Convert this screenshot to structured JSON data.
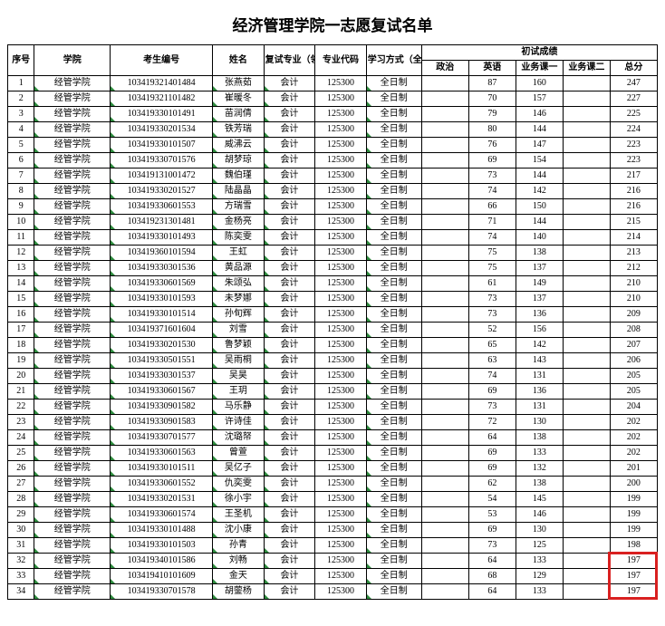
{
  "title": "经济管理学院一志愿复试名单",
  "headers": {
    "seq": "序号",
    "college": "学院",
    "cand_id": "考生编号",
    "name": "姓名",
    "major_field": "复试专业（领域）",
    "major_code": "专业代码",
    "study_mode": "学习方式（全/非全）",
    "score_group": "初试成绩",
    "s1": "政治",
    "s2": "英语",
    "s3": "业务课一",
    "s4": "业务课二",
    "s5": "总分"
  },
  "common": {
    "college": "经管学院",
    "major_field": "会计",
    "major_code": "125300",
    "study_mode": "全日制"
  },
  "rows": [
    {
      "seq": 1,
      "id": "103419321401484",
      "name": "张燕茹",
      "s1": "",
      "s2": "87",
      "s3": "160",
      "s4": "",
      "s5": "247"
    },
    {
      "seq": 2,
      "id": "103419321101482",
      "name": "崔暖冬",
      "s1": "",
      "s2": "70",
      "s3": "157",
      "s4": "",
      "s5": "227"
    },
    {
      "seq": 3,
      "id": "103419330101491",
      "name": "苗润倩",
      "s1": "",
      "s2": "79",
      "s3": "146",
      "s4": "",
      "s5": "225"
    },
    {
      "seq": 4,
      "id": "103419330201534",
      "name": "铁芳瑞",
      "s1": "",
      "s2": "80",
      "s3": "144",
      "s4": "",
      "s5": "224"
    },
    {
      "seq": 5,
      "id": "103419330101507",
      "name": "威沸云",
      "s1": "",
      "s2": "76",
      "s3": "147",
      "s4": "",
      "s5": "223"
    },
    {
      "seq": 6,
      "id": "103419330701576",
      "name": "胡梦琼",
      "s1": "",
      "s2": "69",
      "s3": "154",
      "s4": "",
      "s5": "223"
    },
    {
      "seq": 7,
      "id": "103419131001472",
      "name": "魏伯瑾",
      "s1": "",
      "s2": "73",
      "s3": "144",
      "s4": "",
      "s5": "217"
    },
    {
      "seq": 8,
      "id": "103419330201527",
      "name": "陆晶晶",
      "s1": "",
      "s2": "74",
      "s3": "142",
      "s4": "",
      "s5": "216"
    },
    {
      "seq": 9,
      "id": "103419330601553",
      "name": "方瑞雪",
      "s1": "",
      "s2": "66",
      "s3": "150",
      "s4": "",
      "s5": "216"
    },
    {
      "seq": 10,
      "id": "103419231301481",
      "name": "金杨亮",
      "s1": "",
      "s2": "71",
      "s3": "144",
      "s4": "",
      "s5": "215"
    },
    {
      "seq": 11,
      "id": "103419330101493",
      "name": "陈奕雯",
      "s1": "",
      "s2": "74",
      "s3": "140",
      "s4": "",
      "s5": "214"
    },
    {
      "seq": 12,
      "id": "103419360101594",
      "name": "王虹",
      "s1": "",
      "s2": "75",
      "s3": "138",
      "s4": "",
      "s5": "213"
    },
    {
      "seq": 13,
      "id": "103419330301536",
      "name": "黄品源",
      "s1": "",
      "s2": "75",
      "s3": "137",
      "s4": "",
      "s5": "212"
    },
    {
      "seq": 14,
      "id": "103419330601569",
      "name": "朱颂弘",
      "s1": "",
      "s2": "61",
      "s3": "149",
      "s4": "",
      "s5": "210"
    },
    {
      "seq": 15,
      "id": "103419330101593",
      "name": "未梦娜",
      "s1": "",
      "s2": "73",
      "s3": "137",
      "s4": "",
      "s5": "210"
    },
    {
      "seq": 16,
      "id": "103419330101514",
      "name": "孙旬辉",
      "s1": "",
      "s2": "73",
      "s3": "136",
      "s4": "",
      "s5": "209"
    },
    {
      "seq": 17,
      "id": "103419371601604",
      "name": "刘雪",
      "s1": "",
      "s2": "52",
      "s3": "156",
      "s4": "",
      "s5": "208"
    },
    {
      "seq": 18,
      "id": "103419330201530",
      "name": "鲁梦颖",
      "s1": "",
      "s2": "65",
      "s3": "142",
      "s4": "",
      "s5": "207"
    },
    {
      "seq": 19,
      "id": "103419330501551",
      "name": "吴雨桐",
      "s1": "",
      "s2": "63",
      "s3": "143",
      "s4": "",
      "s5": "206"
    },
    {
      "seq": 20,
      "id": "103419330301537",
      "name": "吴昊",
      "s1": "",
      "s2": "74",
      "s3": "131",
      "s4": "",
      "s5": "205"
    },
    {
      "seq": 21,
      "id": "103419330601567",
      "name": "王玥",
      "s1": "",
      "s2": "69",
      "s3": "136",
      "s4": "",
      "s5": "205"
    },
    {
      "seq": 22,
      "id": "103419330901582",
      "name": "马乐静",
      "s1": "",
      "s2": "73",
      "s3": "131",
      "s4": "",
      "s5": "204"
    },
    {
      "seq": 23,
      "id": "103419330901583",
      "name": "许诗佳",
      "s1": "",
      "s2": "72",
      "s3": "130",
      "s4": "",
      "s5": "202"
    },
    {
      "seq": 24,
      "id": "103419330701577",
      "name": "沈璐帑",
      "s1": "",
      "s2": "64",
      "s3": "138",
      "s4": "",
      "s5": "202"
    },
    {
      "seq": 25,
      "id": "103419330601563",
      "name": "曾萱",
      "s1": "",
      "s2": "69",
      "s3": "133",
      "s4": "",
      "s5": "202"
    },
    {
      "seq": 26,
      "id": "103419330101511",
      "name": "吴亿子",
      "s1": "",
      "s2": "69",
      "s3": "132",
      "s4": "",
      "s5": "201"
    },
    {
      "seq": 27,
      "id": "103419330601552",
      "name": "仇奕雯",
      "s1": "",
      "s2": "62",
      "s3": "138",
      "s4": "",
      "s5": "200"
    },
    {
      "seq": 28,
      "id": "103419330201531",
      "name": "徐小宇",
      "s1": "",
      "s2": "54",
      "s3": "145",
      "s4": "",
      "s5": "199"
    },
    {
      "seq": 29,
      "id": "103419330601574",
      "name": "王圣机",
      "s1": "",
      "s2": "53",
      "s3": "146",
      "s4": "",
      "s5": "199"
    },
    {
      "seq": 30,
      "id": "103419330101488",
      "name": "沈小康",
      "s1": "",
      "s2": "69",
      "s3": "130",
      "s4": "",
      "s5": "199"
    },
    {
      "seq": 31,
      "id": "103419330101503",
      "name": "孙青",
      "s1": "",
      "s2": "73",
      "s3": "125",
      "s4": "",
      "s5": "198"
    },
    {
      "seq": 32,
      "id": "103419340101586",
      "name": "刘畅",
      "s1": "",
      "s2": "64",
      "s3": "133",
      "s4": "",
      "s5": "197"
    },
    {
      "seq": 33,
      "id": "103419410101609",
      "name": "金天",
      "s1": "",
      "s2": "68",
      "s3": "129",
      "s4": "",
      "s5": "197"
    },
    {
      "seq": 34,
      "id": "103419330701578",
      "name": "胡蓥杨",
      "s1": "",
      "s2": "64",
      "s3": "133",
      "s4": "",
      "s5": "197"
    }
  ],
  "colors": {
    "border": "#000000",
    "tick": "#2e8b3e",
    "highlight": "#d92020",
    "background": "#ffffff"
  },
  "highlight": {
    "fromRow": 32,
    "toRow": 34,
    "col": "s5"
  }
}
